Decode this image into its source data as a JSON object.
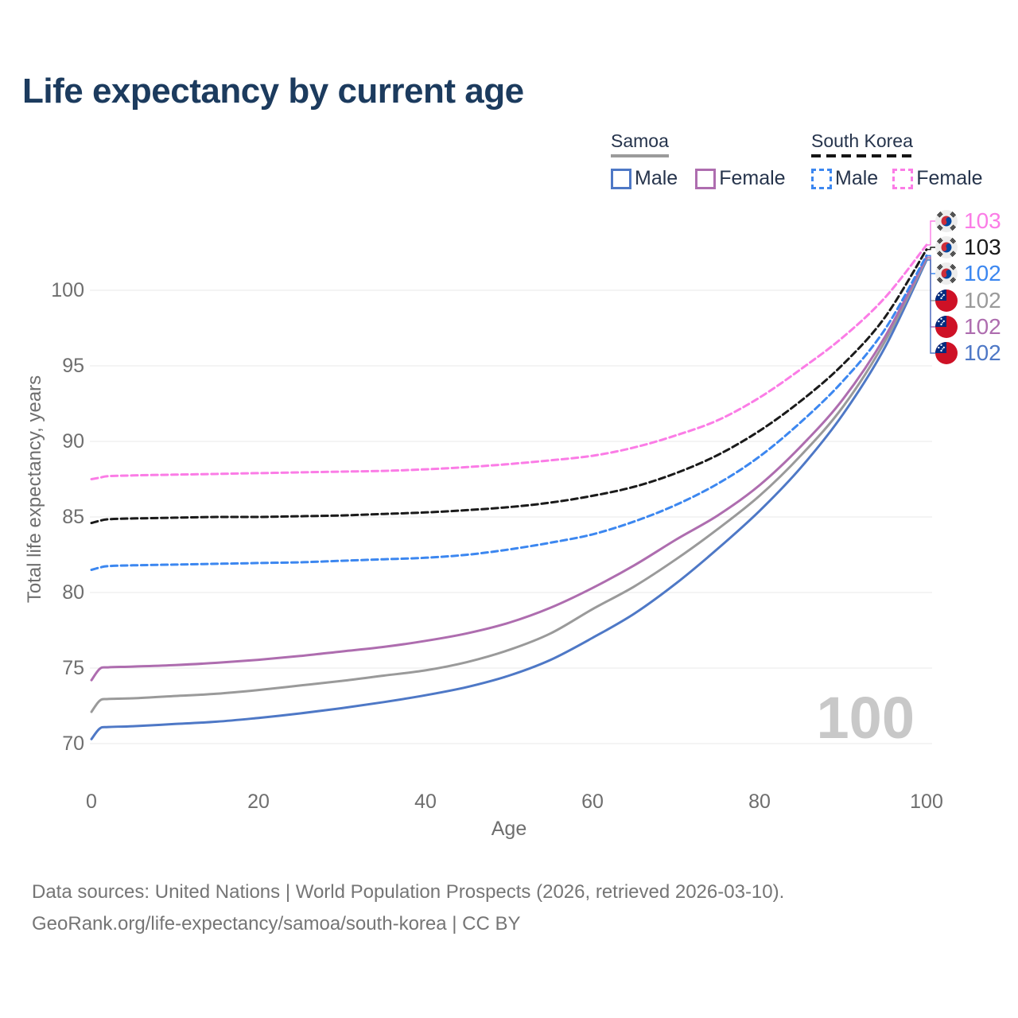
{
  "header": {
    "title": "Life expectancy by current age"
  },
  "legend": {
    "samoa": {
      "title": "Samoa",
      "line_style": "solid",
      "line_color": "#9b9b9b",
      "male_label": "Male",
      "male_color": "#4e78c6",
      "female_label": "Female",
      "female_color": "#ae6daf"
    },
    "south_korea": {
      "title": "South Korea",
      "line_style": "dashed",
      "line_color": "#151515",
      "male_label": "Male",
      "male_color": "#3c87f0",
      "female_label": "Female",
      "female_color": "#fb7ce6"
    }
  },
  "chart_data": {
    "type": "line",
    "title": "Life expectancy by current age",
    "xlabel": "Age",
    "ylabel": "Total life expectancy, years",
    "xlim": [
      0,
      100
    ],
    "ylim": [
      69.5,
      103.5
    ],
    "xticks": [
      0,
      20,
      40,
      60,
      80,
      100
    ],
    "yticks": [
      70,
      75,
      80,
      85,
      90,
      95,
      100
    ],
    "grid": "horizontal",
    "legend_position": "top-right",
    "x": [
      0,
      1,
      2,
      5,
      10,
      15,
      20,
      25,
      30,
      35,
      40,
      45,
      50,
      55,
      60,
      65,
      70,
      75,
      80,
      85,
      90,
      95,
      100
    ],
    "series": [
      {
        "name": "South Korea Female",
        "country": "South Korea",
        "sex": "Female",
        "style": "dashed",
        "color": "#fb7ce6",
        "flag": "south-korea",
        "end_label": "103",
        "values": [
          87.5,
          87.6,
          87.7,
          87.75,
          87.8,
          87.85,
          87.9,
          87.95,
          88.0,
          88.05,
          88.15,
          88.3,
          88.5,
          88.75,
          89.05,
          89.6,
          90.4,
          91.4,
          92.9,
          94.8,
          96.9,
          99.5,
          103.0
        ]
      },
      {
        "name": "South Korea Both sexes",
        "country": "South Korea",
        "sex": "Both",
        "style": "dashed",
        "color": "#1a1a1a",
        "flag": "south-korea",
        "end_label": "103",
        "values": [
          84.6,
          84.75,
          84.85,
          84.9,
          84.95,
          85.0,
          85.0,
          85.05,
          85.1,
          85.2,
          85.3,
          85.45,
          85.65,
          85.95,
          86.4,
          87.0,
          87.9,
          89.1,
          90.7,
          92.7,
          95.1,
          98.2,
          102.7
        ]
      },
      {
        "name": "South Korea Male",
        "country": "South Korea",
        "sex": "Male",
        "style": "dashed",
        "color": "#3c87f0",
        "flag": "south-korea",
        "end_label": "102",
        "values": [
          81.5,
          81.65,
          81.75,
          81.8,
          81.85,
          81.9,
          81.95,
          82.0,
          82.1,
          82.2,
          82.3,
          82.5,
          82.85,
          83.3,
          83.85,
          84.7,
          85.8,
          87.2,
          89.0,
          91.3,
          94.0,
          97.4,
          102.3
        ]
      },
      {
        "name": "Samoa Both sexes",
        "country": "Samoa",
        "sex": "Both",
        "style": "solid",
        "color": "#9a9a9a",
        "flag": "samoa",
        "end_label": "102",
        "values": [
          72.1,
          72.85,
          72.95,
          73.0,
          73.15,
          73.3,
          73.55,
          73.85,
          74.15,
          74.5,
          74.85,
          75.4,
          76.2,
          77.3,
          78.9,
          80.4,
          82.2,
          84.2,
          86.4,
          89.1,
          92.3,
          96.6,
          102.1
        ]
      },
      {
        "name": "Samoa Female",
        "country": "Samoa",
        "sex": "Female",
        "style": "solid",
        "color": "#ae6daf",
        "flag": "samoa",
        "end_label": "102",
        "values": [
          74.2,
          74.95,
          75.05,
          75.1,
          75.2,
          75.35,
          75.55,
          75.8,
          76.1,
          76.4,
          76.8,
          77.3,
          78.0,
          79.0,
          80.3,
          81.8,
          83.5,
          85.1,
          87.1,
          89.7,
          92.8,
          96.9,
          102.2
        ]
      },
      {
        "name": "Samoa Male",
        "country": "Samoa",
        "sex": "Male",
        "style": "solid",
        "color": "#4e78c6",
        "flag": "samoa",
        "end_label": "102",
        "values": [
          70.3,
          71.0,
          71.1,
          71.15,
          71.3,
          71.45,
          71.7,
          72.0,
          72.35,
          72.75,
          73.2,
          73.75,
          74.5,
          75.55,
          77.0,
          78.6,
          80.6,
          82.9,
          85.4,
          88.3,
          91.8,
          96.2,
          102.0
        ]
      }
    ]
  },
  "watermark": {
    "text": "100"
  },
  "footer": {
    "line1": "Data sources: United Nations | World Population Prospects (2026, retrieved 2026-03-10).",
    "line2": "GeoRank.org/life-expectancy/samoa/south-korea | CC BY"
  }
}
